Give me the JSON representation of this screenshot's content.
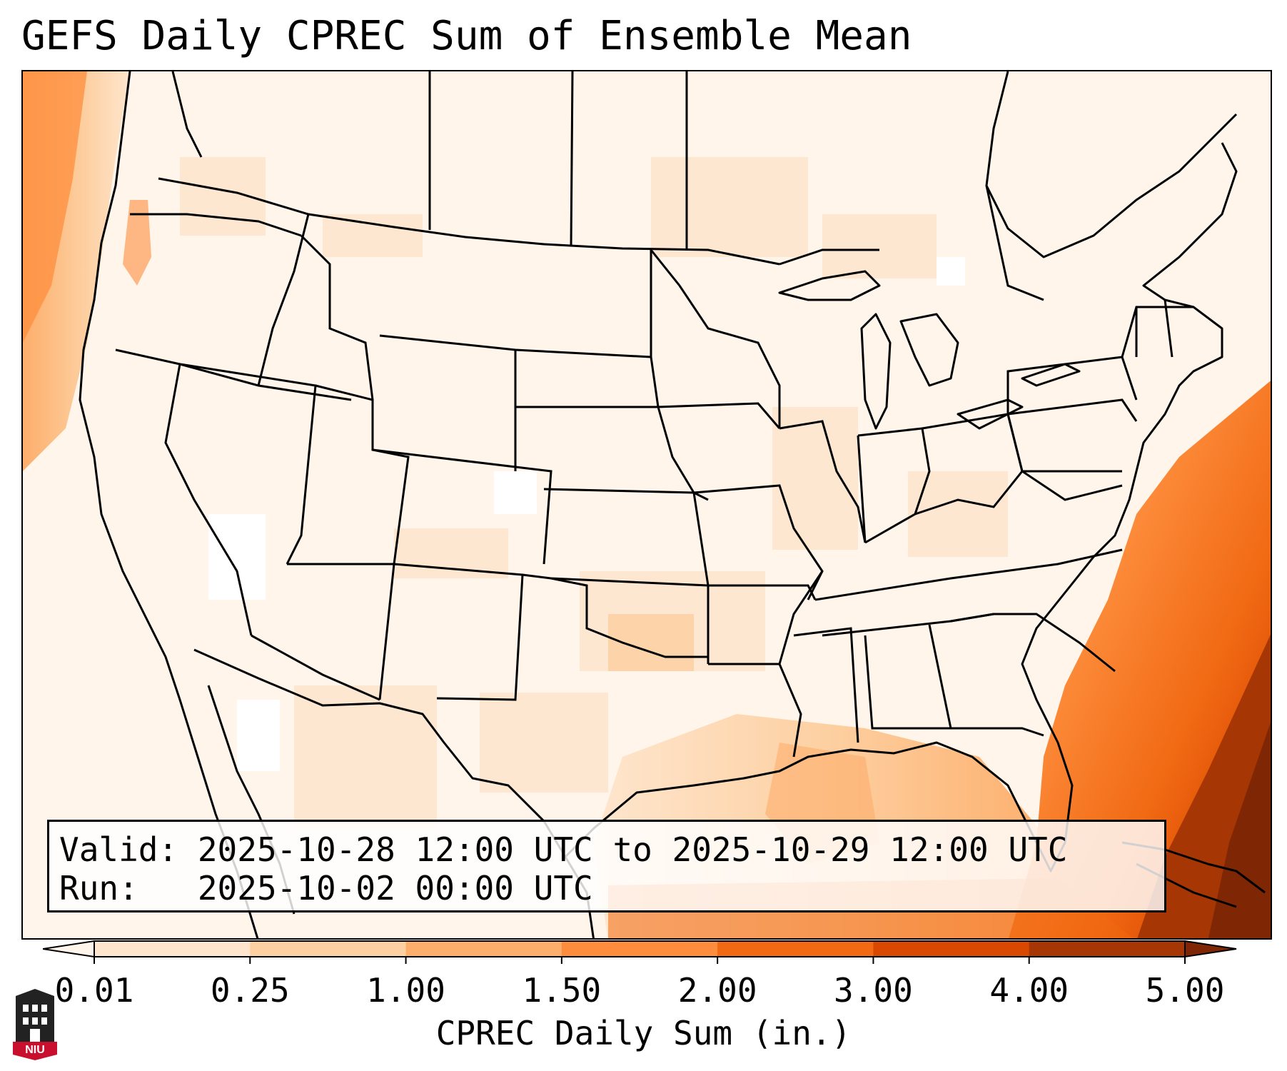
{
  "title": "GEFS Daily CPREC Sum of Ensemble Mean",
  "info": {
    "valid_line": "Valid: 2025-10-28 12:00 UTC to 2025-10-29 12:00 UTC",
    "run_line": "Run:   2025-10-02 00:00 UTC"
  },
  "colorbar": {
    "label": "CPREC Daily Sum (in.)",
    "ticks": [
      "0.01",
      "0.25",
      "1.00",
      "1.50",
      "2.00",
      "3.00",
      "4.00",
      "5.00"
    ],
    "colors": [
      "#fff5eb",
      "#fee6ce",
      "#fdd0a2",
      "#fdae6b",
      "#fd8d3c",
      "#f16913",
      "#d94801",
      "#a63603",
      "#7f2704"
    ]
  },
  "logo": {
    "text": "NIU",
    "icon": "niu-building-icon"
  },
  "map": {
    "region": "CONUS",
    "shading": "precipitation"
  }
}
